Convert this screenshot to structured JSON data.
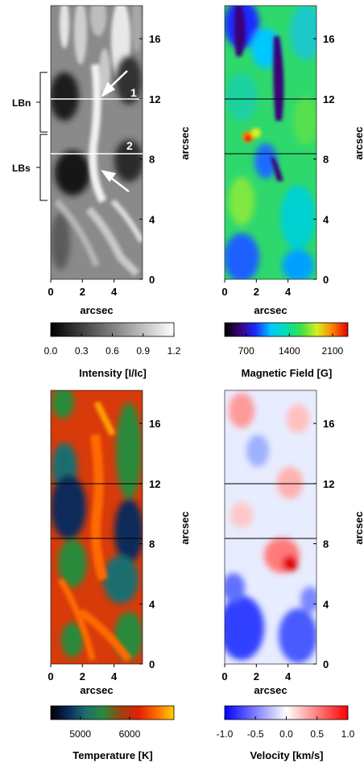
{
  "figure": {
    "panels": [
      {
        "id": "intensity",
        "colorbar": {
          "label": "Intensity [I/Ic]",
          "ticks": [
            "0.0",
            "0.3",
            "0.6",
            "0.9",
            "1.2"
          ],
          "range": [
            0.0,
            1.2
          ],
          "colormap": [
            "#000000",
            "#ffffff"
          ]
        },
        "xlabel": "arcsec",
        "ylabel": "arcsec",
        "annotations": {
          "region_north": "LBn",
          "region_south": "LBs",
          "cut_1": "1",
          "cut_2": "2"
        }
      },
      {
        "id": "magnetic-field",
        "colorbar": {
          "label": "Magnetic Field [G]",
          "ticks": [
            "700",
            "1400",
            "2100"
          ],
          "range": [
            350,
            2350
          ],
          "colormap": [
            "#000000",
            "#3a0078",
            "#1a2cff",
            "#00c8ff",
            "#00e0b0",
            "#40e040",
            "#d8f020",
            "#ff8000",
            "#e00000"
          ]
        },
        "xlabel": "arcsec",
        "ylabel": "arcsec"
      },
      {
        "id": "temperature",
        "colorbar": {
          "label": "Temperature [K]",
          "ticks": [
            "5000",
            "6000"
          ],
          "range": [
            4400,
            6900
          ],
          "colormap": [
            "#000000",
            "#0a2a5a",
            "#1e6e6e",
            "#2a8a3a",
            "#a04010",
            "#e02000",
            "#ff6a00",
            "#ffd000"
          ]
        },
        "xlabel": "arcsec",
        "ylabel": "arcsec"
      },
      {
        "id": "velocity",
        "colorbar": {
          "label": "Velocity [km/s]",
          "ticks": [
            "-1.0",
            "-0.5",
            "0.0",
            "0.5",
            "1.0"
          ],
          "range": [
            -1.0,
            1.0
          ],
          "colormap": [
            "#0000ff",
            "#ffffff",
            "#ff0000"
          ]
        },
        "xlabel": "arcsec",
        "ylabel": "arcsec"
      }
    ]
  },
  "chart_data": {
    "type": "heatmap",
    "panel_order": [
      "intensity",
      "magnetic-field",
      "temperature",
      "velocity"
    ],
    "x": {
      "label": "arcsec",
      "range": [
        0,
        5.8
      ],
      "ticks": [
        0,
        2,
        4
      ]
    },
    "y": {
      "label": "arcsec",
      "range": [
        0,
        18.2
      ],
      "ticks": [
        0,
        4,
        8,
        12,
        16
      ]
    },
    "horizontal_cuts": [
      {
        "label": "1",
        "y": 11.9
      },
      {
        "label": "2",
        "y": 8.4
      }
    ],
    "regions": [
      {
        "label": "LBn",
        "y_range": [
          9.4,
          13.7
        ]
      },
      {
        "label": "LBs",
        "y_range": [
          5.2,
          9.3
        ]
      }
    ],
    "grid": false
  }
}
